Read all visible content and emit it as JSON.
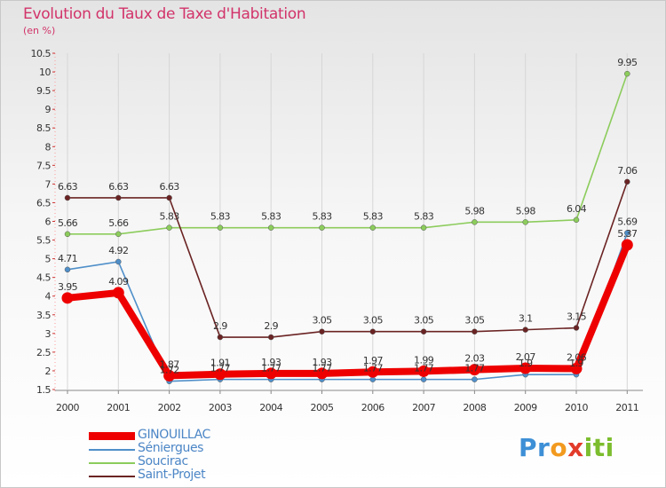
{
  "chart_data": {
    "type": "line",
    "title": "Evolution du Taux de Taxe d'Habitation",
    "subtitle": "(en %)",
    "x": [
      "2000",
      "2001",
      "2002",
      "2003",
      "2004",
      "2005",
      "2006",
      "2007",
      "2008",
      "2009",
      "2010",
      "2011"
    ],
    "ylim": [
      1.5,
      10.5
    ],
    "yticks": [
      1.5,
      2,
      2.5,
      3,
      3.5,
      4,
      4.5,
      5,
      5.5,
      6,
      6.5,
      7,
      7.5,
      8,
      8.5,
      9,
      9.5,
      10,
      10.5
    ],
    "ytick_labels": [
      "1.5",
      "2",
      "2.5",
      "3",
      "3.5",
      "4",
      "4.5",
      "5",
      "5.5",
      "6",
      "6.5",
      "7",
      "7.5",
      "8",
      "8.5",
      "9",
      "9.5",
      "10",
      "10.5"
    ],
    "series": [
      {
        "name": "Séniergues",
        "color": "#4f8fc9",
        "values": [
          4.71,
          4.92,
          1.72,
          1.77,
          1.77,
          1.77,
          1.77,
          1.77,
          1.77,
          1.9,
          1.9,
          5.69
        ],
        "labels": [
          "4.71",
          "4.92",
          "1.72",
          "1.77",
          "1.77",
          "1.77",
          "1.77",
          "1.77",
          "1.77",
          "1.9",
          "1.9",
          "5.69"
        ]
      },
      {
        "name": "Soucirac",
        "color": "#8ccc5c",
        "values": [
          5.66,
          5.66,
          5.83,
          5.83,
          5.83,
          5.83,
          5.83,
          5.83,
          5.98,
          5.98,
          6.04,
          9.95
        ],
        "labels": [
          "5.66",
          "5.66",
          "5.83",
          "5.83",
          "5.83",
          "5.83",
          "5.83",
          "5.83",
          "5.98",
          "5.98",
          "6.04",
          "9.95"
        ]
      },
      {
        "name": "Saint-Projet",
        "color": "#6b2323",
        "values": [
          6.63,
          6.63,
          6.63,
          2.9,
          2.9,
          3.05,
          3.05,
          3.05,
          3.05,
          3.1,
          3.15,
          7.06
        ],
        "labels": [
          "6.63",
          "6.63",
          "6.63",
          "2.9",
          "2.9",
          "3.05",
          "3.05",
          "3.05",
          "3.05",
          "3.1",
          "3.15",
          "7.06"
        ]
      },
      {
        "name": "GINOUILLAC",
        "color": "#ee0000",
        "values": [
          3.95,
          4.09,
          1.87,
          1.91,
          1.93,
          1.93,
          1.97,
          1.99,
          2.03,
          2.07,
          2.06,
          5.37
        ],
        "labels": [
          "3.95",
          "4.09",
          "1.87",
          "1.91",
          "1.93",
          "1.93",
          "1.97",
          "1.99",
          "2.03",
          "2.07",
          "2.06",
          "5.37"
        ]
      }
    ],
    "legend_position": "bottom-left"
  },
  "legend": [
    {
      "label": "GINOUILLAC",
      "color": "#ee0000",
      "width": 9
    },
    {
      "label": "Séniergues",
      "color": "#4f8fc9",
      "width": 2
    },
    {
      "label": "Soucirac",
      "color": "#8ccc5c",
      "width": 2
    },
    {
      "label": "Saint-Projet",
      "color": "#6b2323",
      "width": 2
    }
  ],
  "brand": {
    "letters": [
      "P",
      "r",
      "o",
      "x",
      "i",
      "t",
      "i"
    ],
    "colors": [
      "#3d8fd6",
      "#3d8fd6",
      "#f29a1f",
      "#e23b2a",
      "#7cbd2e",
      "#7cbd2e",
      "#7cbd2e"
    ]
  }
}
